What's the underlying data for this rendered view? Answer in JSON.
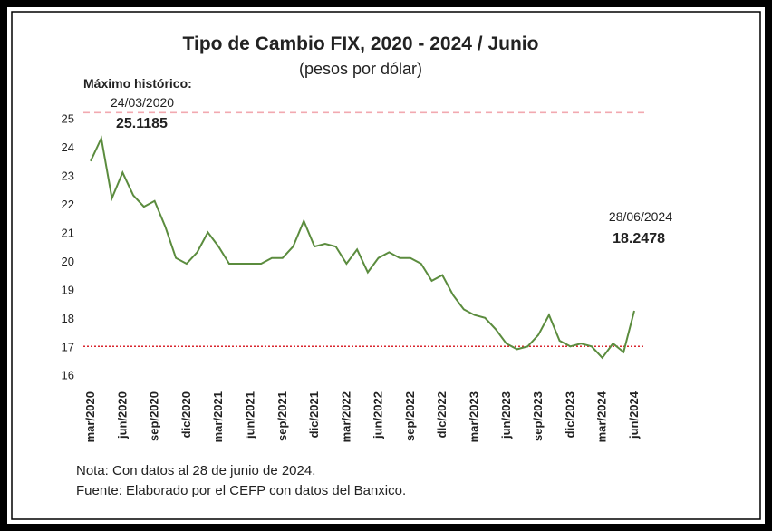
{
  "chart_data": {
    "type": "line",
    "title": "Tipo de Cambio FIX, 2020 - 2024 / Junio",
    "subtitle": "(pesos por dólar)",
    "categories": [
      "mar/2020",
      null,
      null,
      "jun/2020",
      null,
      null,
      "sep/2020",
      null,
      null,
      "dic/2020",
      null,
      null,
      "mar/2021",
      null,
      null,
      "jun/2021",
      null,
      null,
      "sep/2021",
      null,
      null,
      "dic/2021",
      null,
      null,
      "mar/2022",
      null,
      null,
      "jun/2022",
      null,
      null,
      "sep/2022",
      null,
      null,
      "dic/2022",
      null,
      null,
      "mar/2023",
      null,
      null,
      "jun/2023",
      null,
      null,
      "sep/2023",
      null,
      null,
      "dic/2023",
      null,
      null,
      "mar/2024",
      null,
      null,
      "jun/2024"
    ],
    "series": [
      {
        "color": "#5b8c3e",
        "values": [
          23.5,
          24.3,
          22.2,
          23.1,
          22.3,
          21.9,
          22.1,
          21.2,
          20.1,
          19.9,
          20.3,
          21.0,
          20.5,
          19.9,
          19.9,
          19.9,
          19.9,
          20.1,
          20.1,
          20.5,
          21.4,
          20.5,
          20.6,
          20.5,
          19.9,
          20.4,
          19.6,
          20.1,
          20.3,
          20.1,
          20.1,
          19.9,
          19.3,
          19.5,
          18.8,
          18.3,
          18.1,
          18.0,
          17.6,
          17.1,
          16.9,
          17.0,
          17.4,
          18.1,
          17.2,
          17.0,
          17.1,
          17.0,
          16.6,
          17.1,
          16.8,
          18.2478
        ]
      }
    ],
    "ylim": [
      15.8,
      25.4
    ],
    "yticks": [
      16,
      17,
      18,
      19,
      20,
      21,
      22,
      23,
      24,
      25
    ],
    "hlines": [
      {
        "value": 25.2,
        "color": "#f2a9b0",
        "dash": "7 5"
      },
      {
        "value": 17,
        "color": "#d8262e",
        "dash": "2 2"
      }
    ],
    "annotations": [
      "Máximo histórico:",
      "24/03/2020",
      "25.1185",
      "28/06/2024",
      "18.2478"
    ],
    "notes": [
      "Nota: Con datos al 28 de junio de 2024.",
      "Fuente: Elaborado por el CEFP con datos del Banxico."
    ]
  }
}
